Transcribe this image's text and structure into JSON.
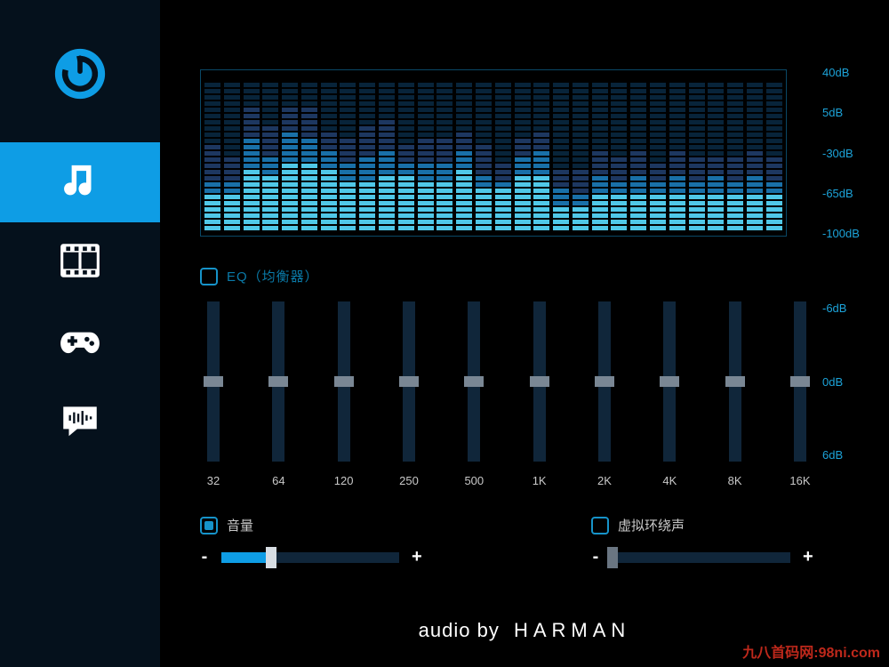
{
  "window": {
    "minimize_label": "—",
    "close_label": "✕"
  },
  "sidebar": {
    "items": [
      {
        "id": "power",
        "semantic": "power-button"
      },
      {
        "id": "music",
        "semantic": "music-tab",
        "active": true
      },
      {
        "id": "movie",
        "semantic": "movie-tab"
      },
      {
        "id": "game",
        "semantic": "game-tab"
      },
      {
        "id": "voice",
        "semantic": "voice-tab"
      }
    ]
  },
  "spectrum": {
    "segments_per_bar": 24,
    "db_labels": [
      "40dB",
      "5dB",
      "-30dB",
      "-65dB",
      "-100dB"
    ],
    "bar_color_lo": "#50c8e8",
    "bar_color_mid": "#1970a8",
    "bar_color_hi": "#1d3760",
    "bar_color_off": "#08243a",
    "box_border": "#0a4866",
    "bars": [
      {
        "lo": 6,
        "mid": 2,
        "hi": 6
      },
      {
        "lo": 6,
        "mid": 2,
        "hi": 4
      },
      {
        "lo": 10,
        "mid": 5,
        "hi": 5
      },
      {
        "lo": 9,
        "mid": 3,
        "hi": 5
      },
      {
        "lo": 11,
        "mid": 5,
        "hi": 4
      },
      {
        "lo": 11,
        "mid": 4,
        "hi": 5
      },
      {
        "lo": 10,
        "mid": 3,
        "hi": 3
      },
      {
        "lo": 8,
        "mid": 3,
        "hi": 4
      },
      {
        "lo": 8,
        "mid": 4,
        "hi": 5
      },
      {
        "lo": 9,
        "mid": 4,
        "hi": 5
      },
      {
        "lo": 9,
        "mid": 2,
        "hi": 3
      },
      {
        "lo": 8,
        "mid": 3,
        "hi": 4
      },
      {
        "lo": 8,
        "mid": 3,
        "hi": 4
      },
      {
        "lo": 10,
        "mid": 3,
        "hi": 3
      },
      {
        "lo": 7,
        "mid": 2,
        "hi": 5
      },
      {
        "lo": 7,
        "mid": 1,
        "hi": 3
      },
      {
        "lo": 9,
        "mid": 3,
        "hi": 3
      },
      {
        "lo": 9,
        "mid": 4,
        "hi": 3
      },
      {
        "lo": 4,
        "mid": 3,
        "hi": 3
      },
      {
        "lo": 4,
        "mid": 2,
        "hi": 4
      },
      {
        "lo": 6,
        "mid": 3,
        "hi": 4
      },
      {
        "lo": 6,
        "mid": 2,
        "hi": 4
      },
      {
        "lo": 6,
        "mid": 3,
        "hi": 4
      },
      {
        "lo": 6,
        "mid": 2,
        "hi": 3
      },
      {
        "lo": 6,
        "mid": 3,
        "hi": 4
      },
      {
        "lo": 6,
        "mid": 2,
        "hi": 4
      },
      {
        "lo": 6,
        "mid": 3,
        "hi": 3
      },
      {
        "lo": 6,
        "mid": 2,
        "hi": 4
      },
      {
        "lo": 6,
        "mid": 3,
        "hi": 4
      },
      {
        "lo": 6,
        "mid": 2,
        "hi": 4
      }
    ]
  },
  "eq": {
    "checkbox_label": "EQ（均衡器）",
    "checked": false,
    "db_labels": [
      "-6dB",
      "0dB",
      "6dB"
    ],
    "freqs": [
      "32",
      "64",
      "120",
      "250",
      "500",
      "1K",
      "2K",
      "4K",
      "8K",
      "16K"
    ],
    "thumb_positions_pct": [
      50,
      50,
      50,
      50,
      50,
      50,
      50,
      50,
      50,
      50
    ],
    "track_color": "#10263a",
    "thumb_color": "#7a8794"
  },
  "volume": {
    "checkbox_label": "音量",
    "checked": true,
    "minus": "-",
    "plus": "+",
    "value_pct": 28,
    "fill_color": "#0e9de5",
    "thumb_color": "#d7dde3"
  },
  "surround": {
    "checkbox_label": "虚拟环绕声",
    "checked": false,
    "minus": "-",
    "plus": "+",
    "value_pct": 0
  },
  "footer": {
    "by": "audio by",
    "name": "HARMAN"
  },
  "watermark": "九八首码网:98ni.com",
  "colors": {
    "accent": "#0e9de5",
    "sidebar_bg": "#05111c",
    "label_blue": "#1ca3d9",
    "label_dim": "#0a7aa8"
  }
}
